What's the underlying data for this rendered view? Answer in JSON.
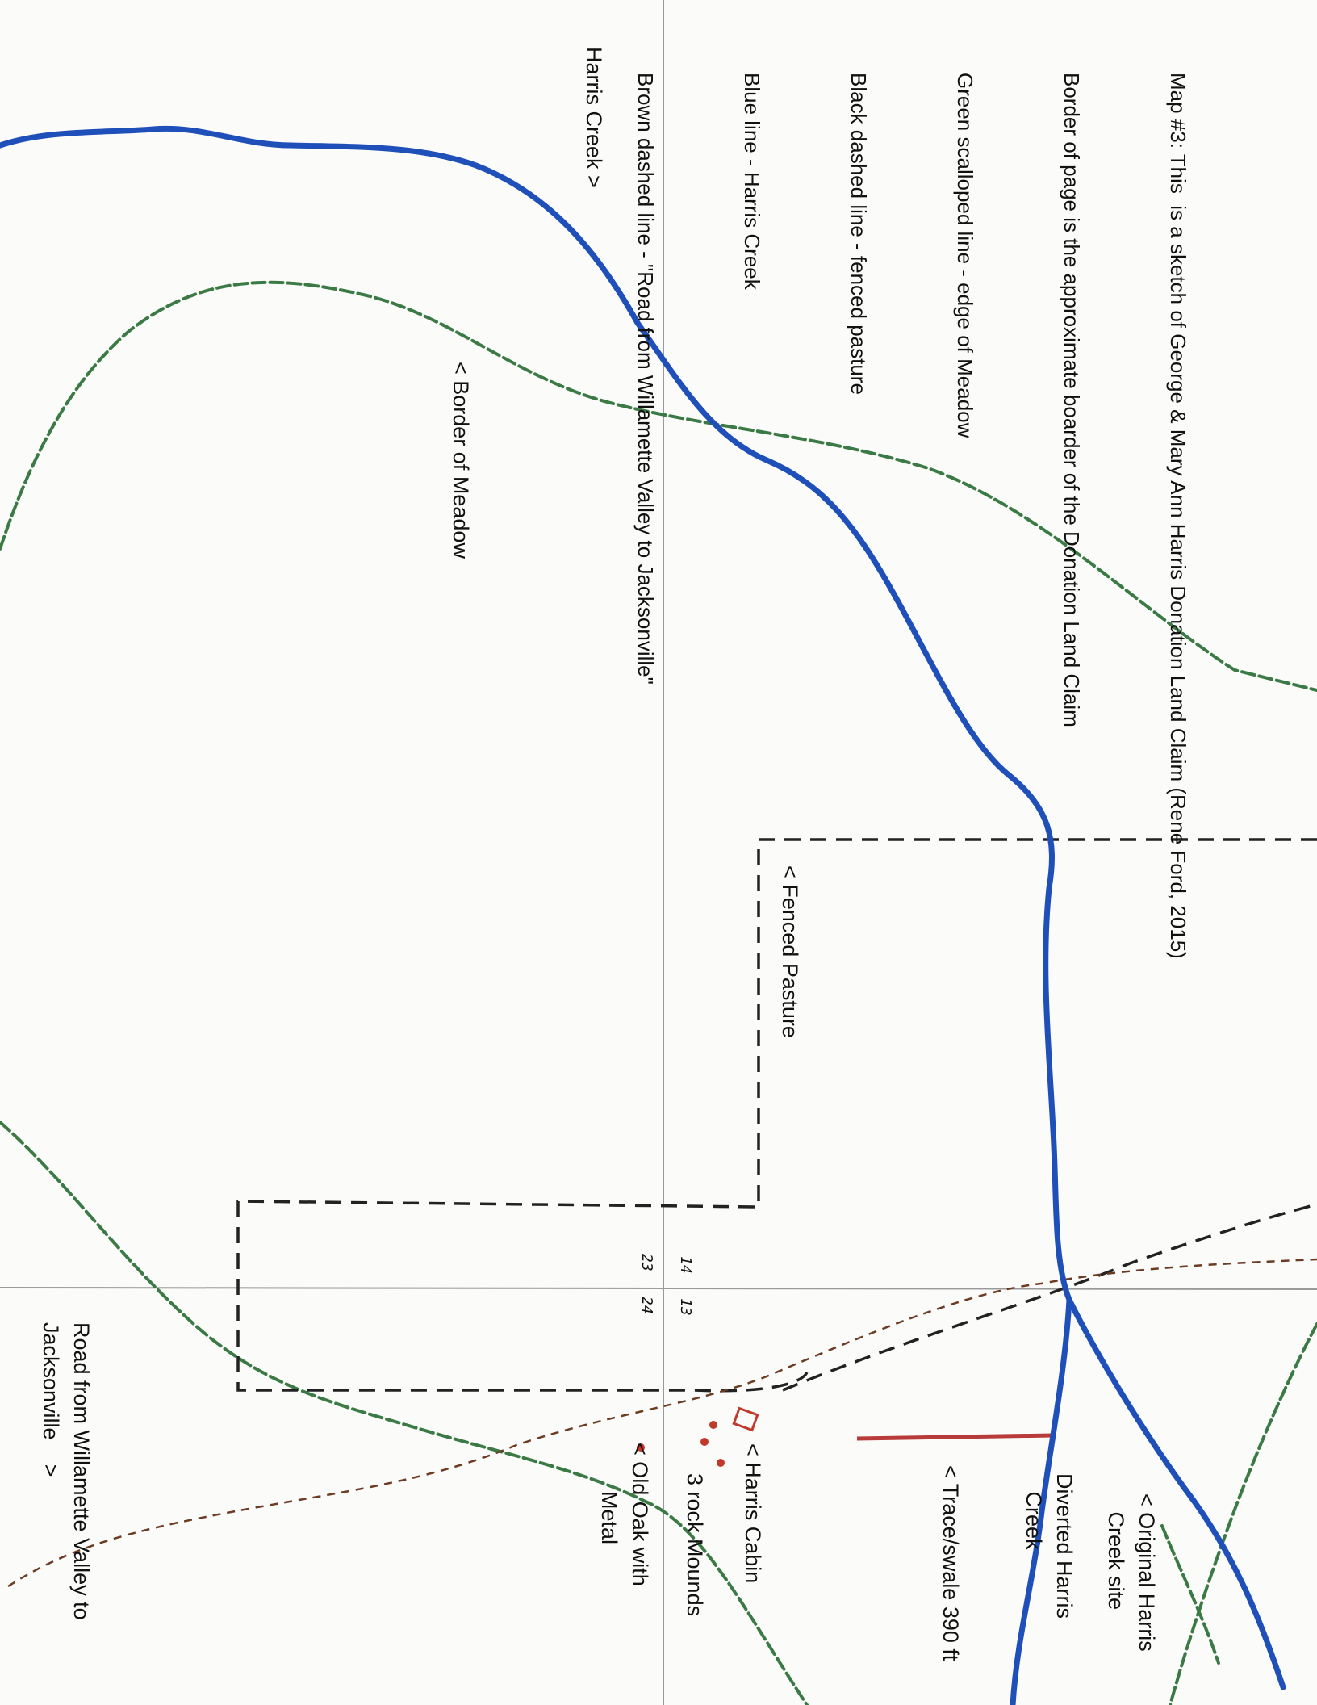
{
  "legend": {
    "lines": [
      "Map #3: This  is a sketch of George & Mary Ann Harris Donation Land Claim (Rene Ford, 2015)",
      "Border of page is the approximate boarder of the Donation Land Claim",
      "Green scalloped line - edge of Meadow",
      "Black dashed line - fenced pasture",
      "Blue line - Harris Creek",
      "Brown dashed line - \"Road from Willamette Valley to Jacksonville\""
    ]
  },
  "labels": {
    "harris_creek": "Harris Creek >",
    "border_of_meadow": "< Border of Meadow",
    "fenced_pasture": "< Fenced Pasture",
    "original_creek": "< Original Harris\n   Creek site",
    "diverted_creek": "Diverted Harris\n   Creek",
    "trace_swale": "< Trace/swale 390 ft",
    "harris_cabin": "< Harris Cabin",
    "rock_mounds": "3 rock Mounds",
    "old_oak": "< Old Oak with\n        Metal",
    "road": "Road from Willamette Valley to\nJacksonville    >"
  },
  "section_numbers": {
    "n14": "14",
    "n13": "13",
    "n23": "23",
    "n24": "24"
  },
  "colors": {
    "creek": "#1f4fb8",
    "meadow": "#3b7a45",
    "fence": "#222222",
    "road": "#6b3b22",
    "trace": "#b83a3a",
    "grid": "#9a9a9a",
    "cabin": "#c0392b"
  }
}
